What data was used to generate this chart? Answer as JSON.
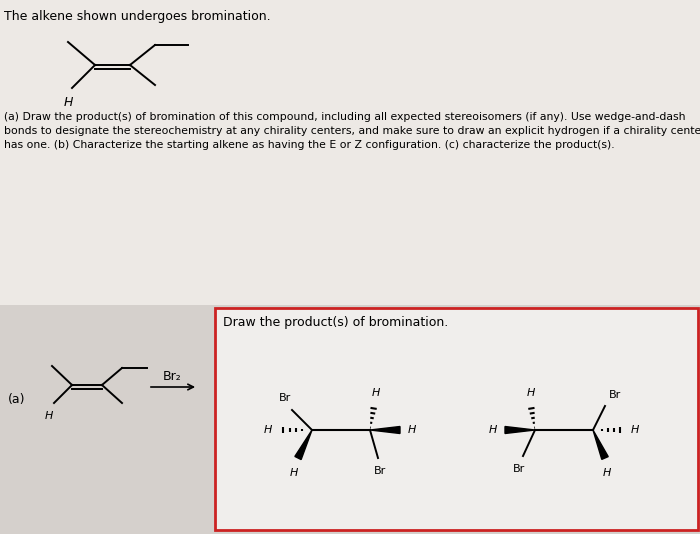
{
  "bg_color": "#ede9e5",
  "panel_bg": "#d5d0cc",
  "box_bg": "#f0eeec",
  "box_border": "#cc2222",
  "title_text": "The alkene shown undergoes bromination.",
  "question_line1": "(a) Draw the product(s) of bromination of this compound, including all expected stereoisomers (if any). Use wedge-and-dash",
  "question_line2": "bonds to designate the stereochemistry at any chirality centers, and make sure to draw an explicit hydrogen if a chirality center",
  "question_line3": "has one. (b) Characterize the starting alkene as having the E or Z configuration. (c) characterize the product(s).",
  "box_label": "Draw the product(s) of bromination.",
  "reagent": "Br₂",
  "label_a": "(a)"
}
